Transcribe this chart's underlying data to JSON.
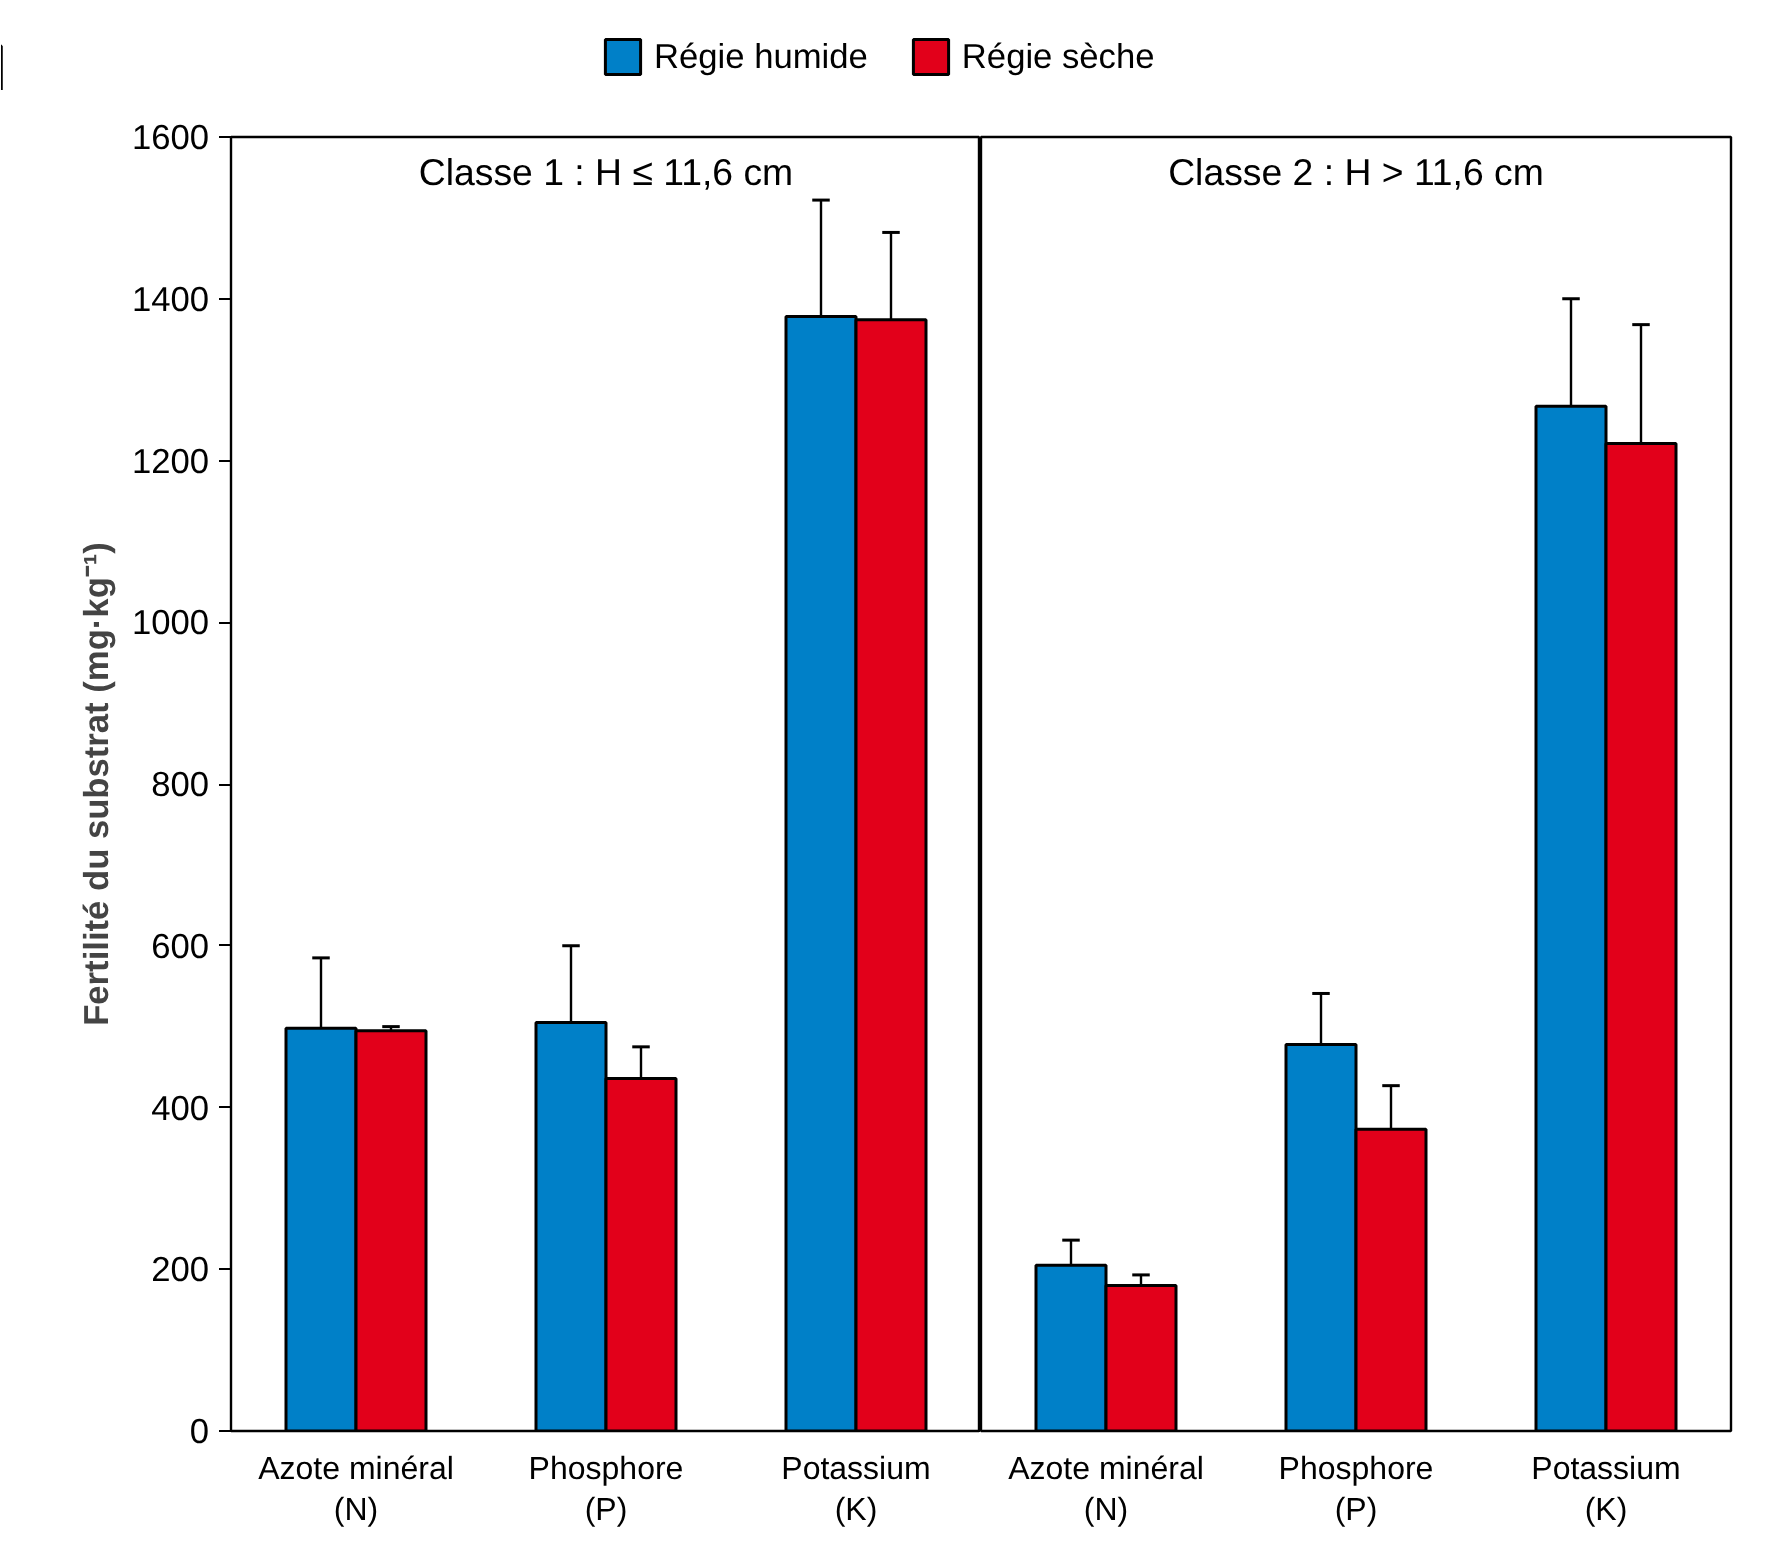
{
  "chart_data": [
    {
      "type": "bar",
      "title": "Classe 1 : H ≤ 11,6 cm",
      "ylabel": "Fertilité du substrat (mg·kg⁻¹)",
      "categories": [
        "Azote minéral\n(N)",
        "Phosphore\n(P)",
        "Potassium\n(K)"
      ],
      "ylim": [
        0,
        1600
      ],
      "yticks": [
        0,
        200,
        400,
        600,
        800,
        1000,
        1200,
        1400,
        1600
      ],
      "grid": false,
      "legend": "top",
      "series": [
        {
          "name": "Régie humide",
          "color": "#0080c8",
          "values": [
            498,
            505,
            1378
          ],
          "errors": [
            [
              498,
              585
            ],
            [
              505,
              600
            ],
            [
              1378,
              1522
            ]
          ]
        },
        {
          "name": "Régie sèche",
          "color": "#e2001a",
          "values": [
            495,
            436,
            1374
          ],
          "errors": [
            [
              495,
              500
            ],
            [
              436,
              475
            ],
            [
              1374,
              1482
            ]
          ]
        }
      ]
    },
    {
      "type": "bar",
      "title": "Classe 2 : H > 11,6 cm",
      "categories": [
        "Azote minéral\n(N)",
        "Phosphore\n(P)",
        "Potassium\n(K)"
      ],
      "ylim": [
        0,
        1600
      ],
      "tick_labels": "x",
      "grid": false,
      "series": [
        {
          "color": "#0080c8",
          "values": [
            205,
            478,
            1267
          ],
          "errors": [
            [
              205,
              236
            ],
            [
              478,
              541
            ],
            [
              1267,
              1400
            ]
          ]
        },
        {
          "color": "#e2001a",
          "values": [
            180,
            373,
            1221
          ],
          "errors": [
            [
              180,
              193
            ],
            [
              373,
              427
            ],
            [
              1221,
              1368
            ]
          ]
        }
      ]
    }
  ]
}
